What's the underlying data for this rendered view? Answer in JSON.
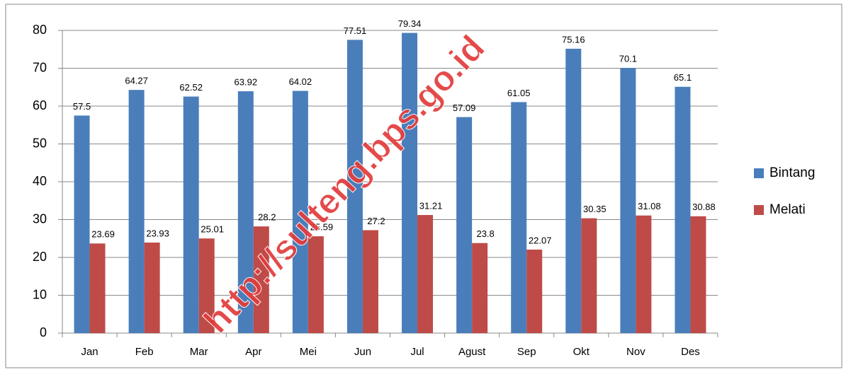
{
  "chart_data": {
    "type": "bar",
    "categories": [
      "Jan",
      "Feb",
      "Mar",
      "Apr",
      "Mei",
      "Jun",
      "Jul",
      "Agust",
      "Sep",
      "Okt",
      "Nov",
      "Des"
    ],
    "series": [
      {
        "name": "Bintang",
        "color": "#4a7ebb",
        "values": [
          57.5,
          64.27,
          62.52,
          63.92,
          64.02,
          77.51,
          79.34,
          57.09,
          61.05,
          75.16,
          70.1,
          65.1
        ]
      },
      {
        "name": "Melati",
        "color": "#be4b48",
        "values": [
          23.69,
          23.93,
          25.01,
          28.2,
          25.59,
          27.2,
          31.21,
          23.8,
          22.07,
          30.35,
          31.08,
          30.88
        ]
      }
    ],
    "ylim": [
      0,
      80
    ],
    "yticks": [
      0,
      10,
      20,
      30,
      40,
      50,
      60,
      70,
      80
    ],
    "grid": true,
    "legend": "right",
    "watermark": "http://sulteng.bps.go.id"
  }
}
